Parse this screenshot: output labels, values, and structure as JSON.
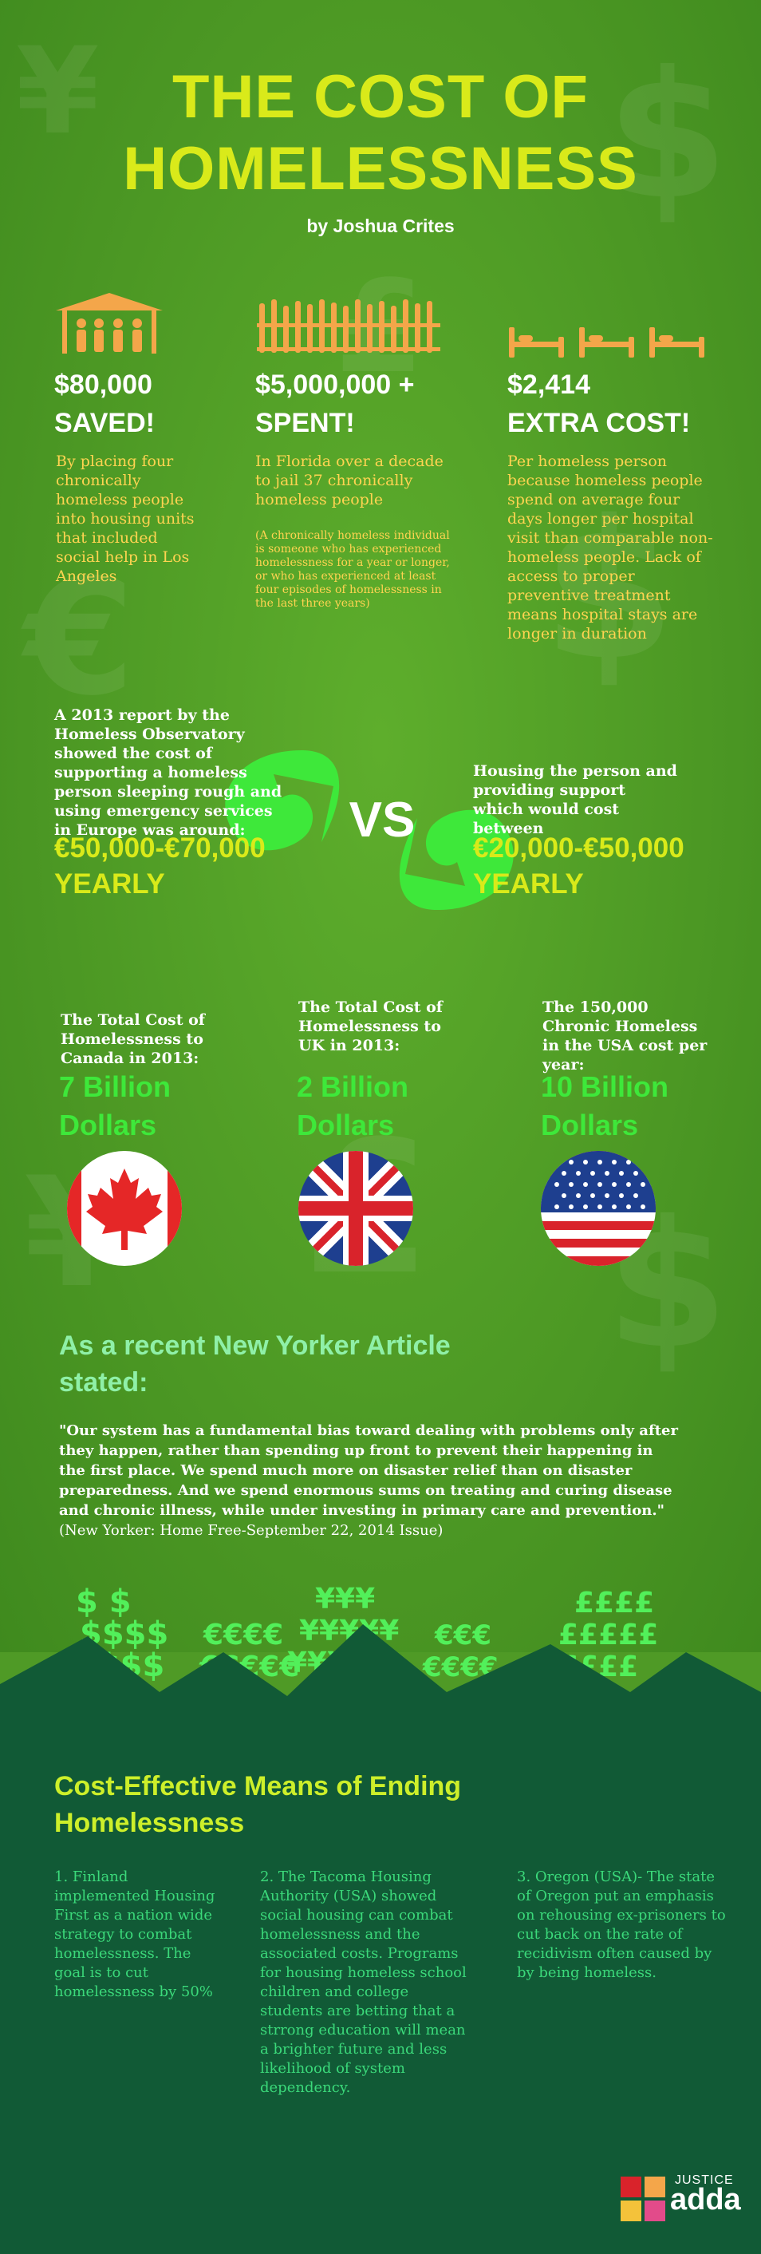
{
  "header": {
    "title_line1": "THE COST OF",
    "title_line2": "HOMELESSNESS",
    "byline": "by Joshua Crites"
  },
  "stats": [
    {
      "icon": "shelter-people-icon",
      "amount": "$80,000",
      "label": "SAVED!",
      "body": "By placing four chronically homeless people into housing units that included social help in Los Angeles"
    },
    {
      "icon": "jail-bars-icon",
      "amount": "$5,000,000 +",
      "label": "SPENT!",
      "body": "In Florida over a decade to jail 37 chronically homeless people",
      "note": "(A chronically homeless individual is someone who has experienced homelessness for a year or longer, or who has experienced at least four episodes of homelessness in the last three years)"
    },
    {
      "icon": "hospital-beds-icon",
      "amount": "$2,414",
      "label": "EXTRA COST!",
      "body": "Per homeless person because homeless people spend on average four days longer per hospital visit than comparable non-homeless people. Lack of access to proper preventive treatment means hospital stays are longer in duration"
    }
  ],
  "comparison": {
    "left_text": "A 2013 report by the Homeless Observatory showed the cost of supporting a homeless person sleeping rough and using emergency services in Europe was around:",
    "left_amount": "€50,000-€70,000",
    "left_period": "YEARLY",
    "vs": "VS",
    "right_text": "Housing the person and providing support which would cost between",
    "right_amount": "€20,000-€50,000",
    "right_period": "YEARLY"
  },
  "country_costs": [
    {
      "label": "The Total Cost of Homelessness to Canada in 2013:",
      "amount_line1": "7 Billion",
      "amount_line2": "Dollars",
      "flag": "canada-flag-icon"
    },
    {
      "label": "The Total Cost of Homelessness to UK in 2013:",
      "amount_line1": "2 Billion",
      "amount_line2": "Dollars",
      "flag": "uk-flag-icon"
    },
    {
      "label": "The 150,000 Chronic Homeless in the USA cost per year:",
      "amount_line1": "10 Billion",
      "amount_line2": "Dollars",
      "flag": "usa-flag-icon"
    }
  ],
  "quote": {
    "heading": "As a recent New Yorker Article stated:",
    "text": "\"Our system has a fundamental bias toward dealing with problems only after they happen, rather than spending up front to prevent their happening in the first place. We spend much more on disaster relief than on disaster preparedness. And we spend enormous sums on treating and curing disease and chronic illness, while under investing in primary care and prevention.\"",
    "source": " (New Yorker: Home Free-September 22, 2014 Issue)"
  },
  "means": {
    "heading": "Cost-Effective Means of Ending Homelessness",
    "items": [
      "1. Finland implemented Housing First as a nation wide strategy to combat homelessness. The goal is to cut homelessness by 50%",
      "2. The Tacoma Housing Authority (USA) showed social housing can combat homelessness and the associated costs. Programs for housing homeless school children and college students are betting that a strrong education will mean a brighter future and less likelihood of system dependency.",
      "3. Oregon (USA)- The state of Oregon put an emphasis on rehousing ex-prisoners to cut back on the rate of recidivism often caused by by being homeless."
    ]
  },
  "logo": {
    "line1": "JUSTICE",
    "line2": "adda"
  },
  "colors": {
    "background_green": "#4f9a26",
    "title_yellow": "#d9ea1a",
    "body_orange": "#ffd451",
    "bright_green": "#3ee83a",
    "dark_green": "#115a36"
  }
}
